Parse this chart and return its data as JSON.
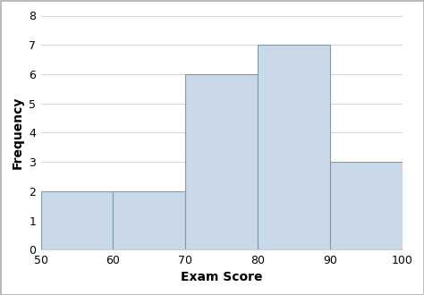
{
  "bin_edges": [
    50,
    60,
    70,
    80,
    90,
    100
  ],
  "frequencies": [
    2,
    2,
    6,
    7,
    3
  ],
  "bar_face_color": "#c9d9e8",
  "bar_edge_color": "#7a9ab0",
  "xlabel": "Exam Score",
  "ylabel": "Frequency",
  "xlim": [
    50,
    100
  ],
  "ylim": [
    0,
    8
  ],
  "xticks": [
    50,
    60,
    70,
    80,
    90,
    100
  ],
  "yticks": [
    0,
    1,
    2,
    3,
    4,
    5,
    6,
    7,
    8
  ],
  "xlabel_fontsize": 10,
  "ylabel_fontsize": 10,
  "tick_fontsize": 9,
  "background_color": "#ffffff",
  "grid_color": "#d0d0d0",
  "bar_linewidth": 0.8,
  "figure_border_color": "#bbbbbb"
}
